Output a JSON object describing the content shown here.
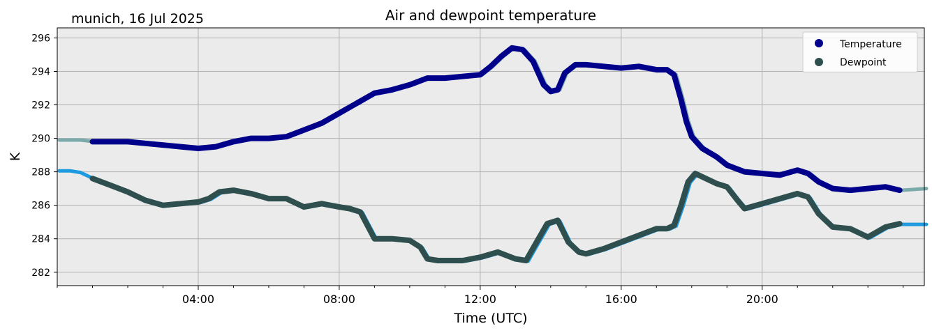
{
  "subtitle": "munich, 16 Jul 2025",
  "chart_data": {
    "type": "line",
    "title": "Air and dewpoint temperature",
    "xlabel": "Time (UTC)",
    "ylabel": "K",
    "xlim": [
      0,
      24.6
    ],
    "ylim": [
      281.2,
      296.6
    ],
    "x_ticks": [
      {
        "hour": 4,
        "label": "04:00"
      },
      {
        "hour": 8,
        "label": "08:00"
      },
      {
        "hour": 12,
        "label": "12:00"
      },
      {
        "hour": 16,
        "label": "16:00"
      },
      {
        "hour": 20,
        "label": "20:00"
      }
    ],
    "y_ticks": [
      282,
      284,
      286,
      288,
      290,
      292,
      294,
      296
    ],
    "grid": true,
    "legend": {
      "placement": "top-right",
      "entries": [
        {
          "label": "Temperature",
          "color": "#00008b"
        },
        {
          "label": "Dewpoint",
          "color": "#2f4f4f"
        }
      ]
    },
    "series": [
      {
        "name": "Temperature",
        "color": "#00008b",
        "raw_color": "#7aaaaa",
        "x": [
          0.0,
          0.3,
          0.6,
          1.0,
          1.5,
          2.0,
          2.5,
          3.0,
          3.5,
          4.0,
          4.5,
          5.0,
          5.5,
          6.0,
          6.5,
          7.0,
          7.5,
          8.0,
          8.5,
          9.0,
          9.5,
          10.0,
          10.5,
          11.0,
          11.5,
          12.0,
          12.3,
          12.6,
          12.9,
          13.2,
          13.5,
          13.8,
          14.0,
          14.2,
          14.4,
          14.7,
          15.0,
          15.5,
          16.0,
          16.5,
          17.0,
          17.3,
          17.5,
          17.7,
          17.85,
          18.0,
          18.3,
          18.7,
          19.0,
          19.5,
          20.0,
          20.5,
          21.0,
          21.3,
          21.6,
          22.0,
          22.5,
          23.0,
          23.5,
          23.9,
          24.6
        ],
        "values": [
          289.9,
          289.9,
          289.9,
          289.8,
          289.8,
          289.8,
          289.7,
          289.6,
          289.5,
          289.4,
          289.5,
          289.8,
          290.0,
          290.0,
          290.1,
          290.5,
          290.9,
          291.5,
          292.1,
          292.7,
          292.9,
          293.2,
          293.6,
          293.6,
          293.7,
          293.8,
          294.3,
          294.9,
          295.4,
          295.3,
          294.6,
          293.2,
          292.8,
          292.9,
          293.9,
          294.4,
          294.4,
          294.3,
          294.2,
          294.3,
          294.1,
          294.1,
          293.8,
          292.3,
          291.0,
          290.1,
          289.4,
          288.9,
          288.4,
          288.0,
          287.9,
          287.8,
          288.1,
          287.9,
          287.4,
          287.0,
          286.9,
          287.0,
          287.1,
          286.9,
          287.0
        ]
      },
      {
        "name": "Dewpoint",
        "color": "#2f4f4f",
        "raw_color": "#1e9be0",
        "x": [
          0.0,
          0.3,
          0.6,
          1.0,
          1.5,
          2.0,
          2.5,
          3.0,
          3.5,
          4.0,
          4.3,
          4.6,
          5.0,
          5.5,
          6.0,
          6.5,
          7.0,
          7.5,
          8.0,
          8.3,
          8.6,
          8.8,
          9.0,
          9.2,
          9.5,
          10.0,
          10.3,
          10.5,
          10.8,
          11.0,
          11.5,
          12.0,
          12.5,
          13.0,
          13.3,
          13.6,
          13.9,
          14.2,
          14.5,
          14.8,
          15.0,
          15.5,
          16.0,
          16.5,
          17.0,
          17.3,
          17.5,
          17.7,
          17.9,
          18.1,
          18.4,
          18.7,
          19.0,
          19.3,
          19.5,
          20.0,
          20.5,
          21.0,
          21.3,
          21.6,
          22.0,
          22.5,
          23.0,
          23.5,
          23.9,
          24.6
        ],
        "values": [
          288.1,
          288.1,
          288.0,
          287.6,
          287.2,
          286.8,
          286.3,
          286.0,
          286.1,
          286.2,
          286.4,
          286.8,
          286.9,
          286.7,
          286.4,
          286.4,
          285.9,
          286.1,
          285.9,
          285.8,
          285.6,
          284.8,
          284.0,
          284.0,
          284.0,
          283.9,
          283.5,
          282.8,
          282.7,
          282.7,
          282.7,
          282.9,
          283.2,
          282.8,
          282.7,
          283.8,
          284.9,
          285.1,
          283.8,
          283.2,
          283.1,
          283.4,
          283.8,
          284.2,
          284.6,
          284.6,
          284.8,
          286.0,
          287.4,
          287.9,
          287.6,
          287.3,
          287.1,
          286.3,
          285.8,
          286.1,
          286.4,
          286.7,
          286.5,
          285.5,
          284.7,
          284.6,
          284.1,
          284.7,
          284.9,
          284.9
        ]
      }
    ]
  }
}
